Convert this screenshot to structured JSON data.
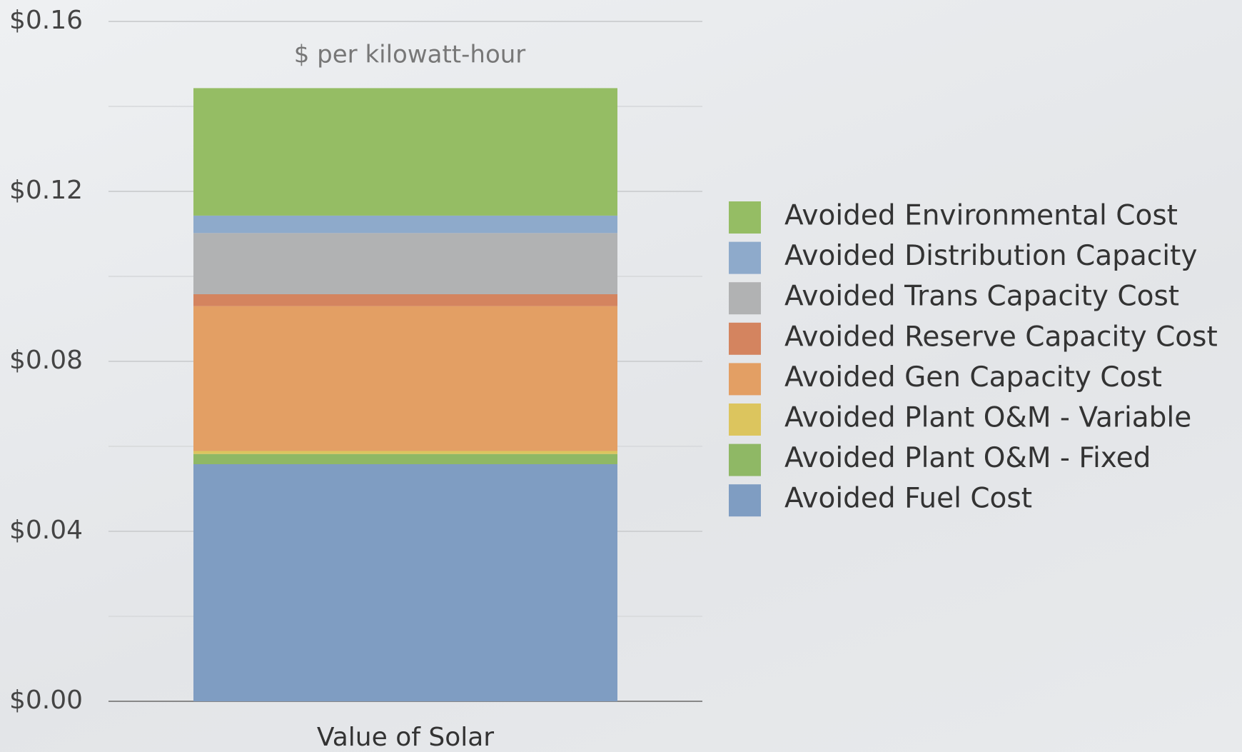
{
  "chart_data": {
    "type": "stacked_bar",
    "ylabel": "$ per kilowatt-hour",
    "categories": [
      "Value of Solar"
    ],
    "series": [
      {
        "name": "Avoided Fuel Cost",
        "color": "#7f9dc2",
        "values": [
          0.0558
        ]
      },
      {
        "name": "Avoided Plant O&M - Fixed",
        "color": "#8fb865",
        "values": [
          0.0024
        ]
      },
      {
        "name": "Avoided Plant O&M - Variable",
        "color": "#dcc55e",
        "values": [
          0.0007
        ]
      },
      {
        "name": "Avoided Gen Capacity Cost",
        "color": "#e39f64",
        "values": [
          0.0341
        ]
      },
      {
        "name": "Avoided Reserve Capacity Cost",
        "color": "#d4845f",
        "values": [
          0.0028
        ]
      },
      {
        "name": "Avoided Trans Capacity Cost",
        "color": "#b1b2b3",
        "values": [
          0.0144
        ]
      },
      {
        "name": "Avoided Distribution Capacity",
        "color": "#8eaacb",
        "values": [
          0.0041
        ]
      },
      {
        "name": "Avoided Environmental Cost",
        "color": "#95bd64",
        "values": [
          0.03
        ]
      }
    ],
    "ylim": [
      0,
      0.16
    ],
    "yticks": [
      {
        "value": 0,
        "label": "$0.00"
      },
      {
        "value": 0.04,
        "label": "$0.04"
      },
      {
        "value": 0.08,
        "label": "$0.08"
      },
      {
        "value": 0.12,
        "label": "$0.12"
      },
      {
        "value": 0.16,
        "label": "$0.16"
      }
    ],
    "minor_yticks": [
      0.02,
      0.06,
      0.1,
      0.14
    ],
    "grid": true,
    "legend": "right"
  }
}
